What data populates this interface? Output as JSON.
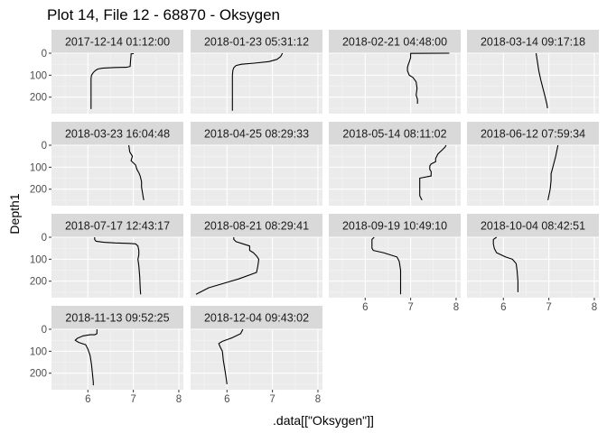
{
  "chart_data": {
    "type": "line",
    "title": "Plot 14, File 12 - 68870  -  Oksygen",
    "xlabel": ".data[[\"Oksygen\"]]",
    "ylabel": "Depth1",
    "xlim": [
      5.2,
      8.1
    ],
    "ylim": [
      0,
      275
    ],
    "x_ticks": [
      6,
      7,
      8
    ],
    "y_ticks": [
      0,
      100,
      200
    ],
    "y_reversed": true,
    "grid": true,
    "line_color": "#000000",
    "panel_background": "#ebebeb",
    "strip_background": "#d9d9d9",
    "panels": [
      {
        "label": "2017-12-14 01:12:00",
        "points": [
          [
            7.0,
            0
          ],
          [
            7.0,
            2
          ],
          [
            6.95,
            3
          ],
          [
            6.95,
            10
          ],
          [
            6.94,
            30
          ],
          [
            6.93,
            60
          ],
          [
            6.85,
            64
          ],
          [
            6.6,
            65
          ],
          [
            6.32,
            68
          ],
          [
            6.22,
            72
          ],
          [
            6.17,
            78
          ],
          [
            6.12,
            88
          ],
          [
            6.08,
            100
          ],
          [
            6.07,
            115
          ],
          [
            6.07,
            150
          ],
          [
            6.07,
            200
          ],
          [
            6.07,
            250
          ],
          [
            6.07,
            254
          ]
        ]
      },
      {
        "label": "2018-01-23 05:31:12",
        "points": [
          [
            7.22,
            0
          ],
          [
            7.18,
            15
          ],
          [
            7.1,
            28
          ],
          [
            6.92,
            38
          ],
          [
            6.6,
            45
          ],
          [
            6.32,
            50
          ],
          [
            6.2,
            56
          ],
          [
            6.15,
            66
          ],
          [
            6.13,
            78
          ],
          [
            6.12,
            100
          ],
          [
            6.12,
            150
          ],
          [
            6.12,
            200
          ],
          [
            6.12,
            250
          ],
          [
            6.12,
            262
          ]
        ]
      },
      {
        "label": "2018-02-21 04:48:00",
        "points": [
          [
            7.85,
            0
          ],
          [
            7.0,
            1
          ],
          [
            7.0,
            20
          ],
          [
            6.97,
            40
          ],
          [
            6.95,
            50
          ],
          [
            6.93,
            65
          ],
          [
            6.93,
            80
          ],
          [
            6.97,
            100
          ],
          [
            7.05,
            110
          ],
          [
            7.12,
            130
          ],
          [
            7.14,
            160
          ],
          [
            7.12,
            190
          ],
          [
            7.15,
            210
          ],
          [
            7.15,
            230
          ]
        ]
      },
      {
        "label": "2018-03-14 09:17:18",
        "points": [
          [
            6.72,
            0
          ],
          [
            6.75,
            40
          ],
          [
            6.78,
            80
          ],
          [
            6.82,
            120
          ],
          [
            6.87,
            160
          ],
          [
            6.92,
            200
          ],
          [
            6.96,
            235
          ],
          [
            6.97,
            250
          ]
        ]
      },
      {
        "label": "2018-03-23 16:04:48",
        "points": [
          [
            6.9,
            0
          ],
          [
            6.92,
            30
          ],
          [
            6.98,
            50
          ],
          [
            6.95,
            70
          ],
          [
            7.05,
            90
          ],
          [
            7.08,
            110
          ],
          [
            7.12,
            125
          ],
          [
            7.15,
            140
          ],
          [
            7.18,
            165
          ],
          [
            7.18,
            190
          ],
          [
            7.2,
            215
          ],
          [
            7.22,
            240
          ],
          [
            7.23,
            250
          ]
        ]
      },
      {
        "label": "2018-04-25 08:29:33",
        "points": []
      },
      {
        "label": "2018-05-14 08:11:02",
        "points": [
          [
            7.78,
            0
          ],
          [
            7.75,
            10
          ],
          [
            7.7,
            20
          ],
          [
            7.6,
            40
          ],
          [
            7.55,
            60
          ],
          [
            7.55,
            75
          ],
          [
            7.45,
            85
          ],
          [
            7.42,
            95
          ],
          [
            7.42,
            110
          ],
          [
            7.45,
            120
          ],
          [
            7.45,
            140
          ],
          [
            7.2,
            150
          ],
          [
            7.2,
            170
          ],
          [
            7.2,
            200
          ],
          [
            7.2,
            230
          ],
          [
            7.25,
            250
          ]
        ]
      },
      {
        "label": "2018-06-12 07:59:34",
        "points": [
          [
            7.2,
            0
          ],
          [
            7.18,
            20
          ],
          [
            7.15,
            50
          ],
          [
            7.1,
            90
          ],
          [
            7.05,
            130
          ],
          [
            7.05,
            160
          ],
          [
            7.03,
            200
          ],
          [
            7.0,
            230
          ],
          [
            6.98,
            250
          ]
        ]
      },
      {
        "label": "2018-07-17 12:43:17",
        "points": [
          [
            6.15,
            0
          ],
          [
            6.15,
            10
          ],
          [
            6.18,
            18
          ],
          [
            6.35,
            23
          ],
          [
            6.6,
            26
          ],
          [
            6.9,
            28
          ],
          [
            7.05,
            30
          ],
          [
            7.1,
            40
          ],
          [
            7.12,
            60
          ],
          [
            7.12,
            80
          ],
          [
            7.1,
            100
          ],
          [
            7.12,
            130
          ],
          [
            7.14,
            180
          ],
          [
            7.15,
            230
          ],
          [
            7.16,
            260
          ]
        ]
      },
      {
        "label": "2018-08-21 08:29:41",
        "points": [
          [
            6.15,
            0
          ],
          [
            6.15,
            10
          ],
          [
            6.2,
            20
          ],
          [
            6.35,
            30
          ],
          [
            6.5,
            40
          ],
          [
            6.5,
            60
          ],
          [
            6.58,
            70
          ],
          [
            6.65,
            85
          ],
          [
            6.7,
            100
          ],
          [
            6.68,
            130
          ],
          [
            6.65,
            160
          ],
          [
            6.25,
            190
          ],
          [
            5.6,
            230
          ],
          [
            5.32,
            260
          ]
        ]
      },
      {
        "label": "2018-09-19 10:49:10",
        "points": [
          [
            6.2,
            0
          ],
          [
            6.15,
            10
          ],
          [
            6.15,
            30
          ],
          [
            6.15,
            50
          ],
          [
            6.18,
            60
          ],
          [
            6.4,
            70
          ],
          [
            6.55,
            80
          ],
          [
            6.7,
            90
          ],
          [
            6.75,
            110
          ],
          [
            6.78,
            150
          ],
          [
            6.78,
            200
          ],
          [
            6.78,
            260
          ]
        ]
      },
      {
        "label": "2018-10-04 08:42:51",
        "points": [
          [
            5.85,
            0
          ],
          [
            5.78,
            10
          ],
          [
            5.78,
            30
          ],
          [
            5.8,
            50
          ],
          [
            5.85,
            70
          ],
          [
            6.05,
            90
          ],
          [
            6.2,
            100
          ],
          [
            6.28,
            120
          ],
          [
            6.3,
            150
          ],
          [
            6.32,
            200
          ],
          [
            6.32,
            250
          ]
        ]
      },
      {
        "label": "2018-11-13 09:52:25",
        "points": [
          [
            6.2,
            0
          ],
          [
            6.2,
            20
          ],
          [
            6.15,
            25
          ],
          [
            6.05,
            25
          ],
          [
            5.9,
            30
          ],
          [
            5.78,
            40
          ],
          [
            5.72,
            50
          ],
          [
            5.8,
            60
          ],
          [
            5.95,
            70
          ],
          [
            6.0,
            90
          ],
          [
            6.05,
            120
          ],
          [
            6.08,
            160
          ],
          [
            6.1,
            200
          ],
          [
            6.12,
            240
          ],
          [
            6.12,
            255
          ]
        ]
      },
      {
        "label": "2018-12-04 09:43:02",
        "points": [
          [
            6.35,
            0
          ],
          [
            6.3,
            20
          ],
          [
            6.1,
            40
          ],
          [
            5.9,
            55
          ],
          [
            5.82,
            65
          ],
          [
            5.85,
            80
          ],
          [
            5.9,
            100
          ],
          [
            5.92,
            140
          ],
          [
            5.95,
            180
          ],
          [
            5.98,
            220
          ],
          [
            6.0,
            250
          ]
        ]
      }
    ]
  }
}
